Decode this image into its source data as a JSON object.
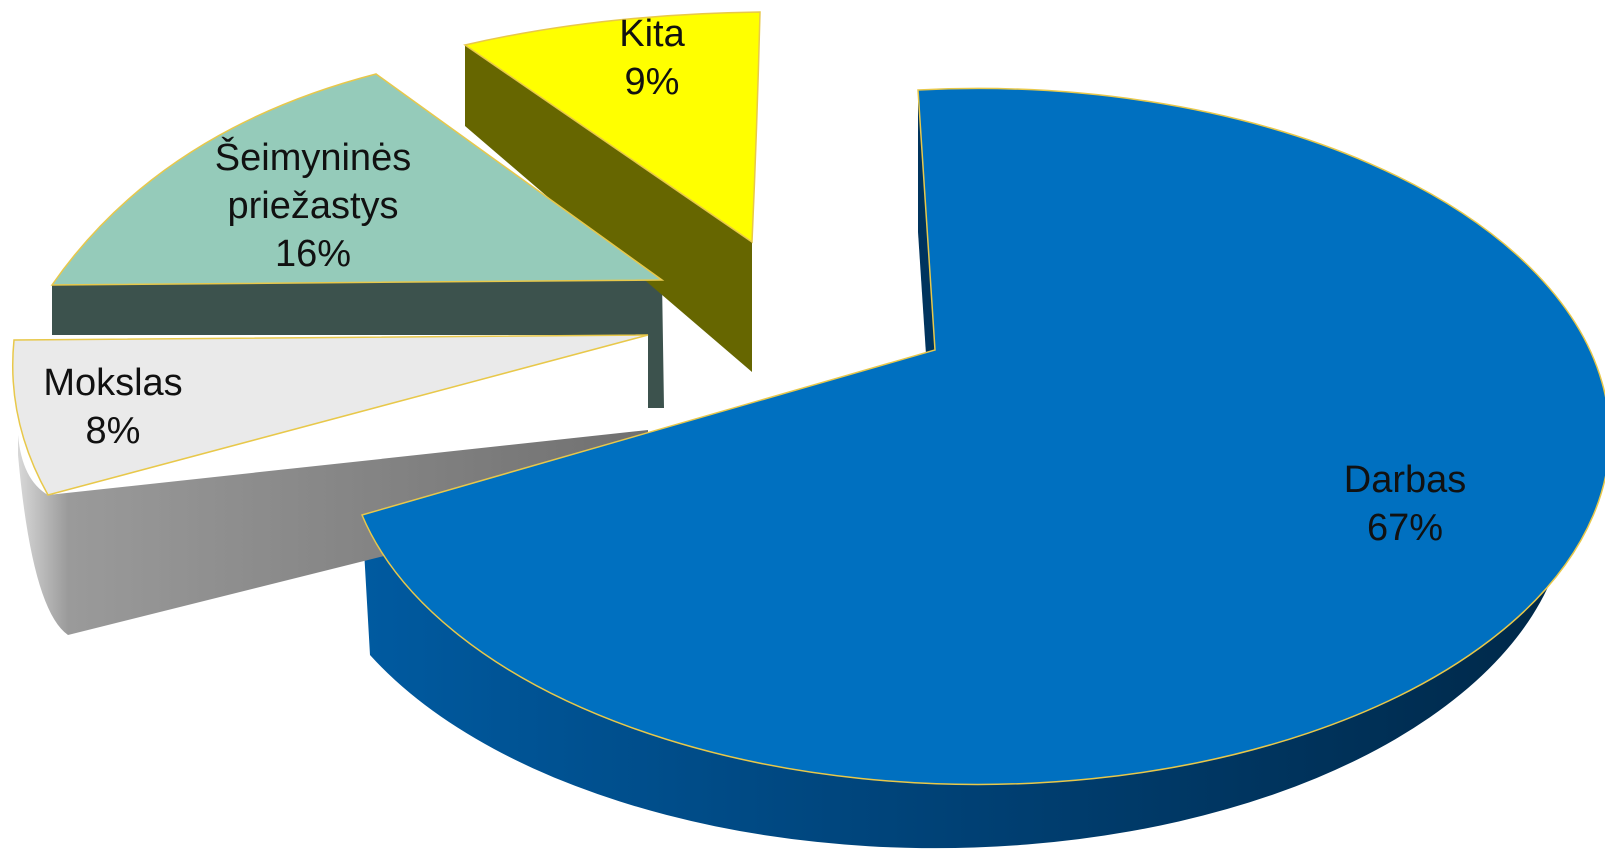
{
  "chart_data": {
    "type": "pie",
    "style": "3d-exploded",
    "title": "",
    "categories": [
      "Darbas",
      "Mokslas",
      "Šeimyninės priežastys",
      "Kita"
    ],
    "values": [
      67,
      8,
      16,
      9
    ],
    "unit": "%",
    "slices": [
      {
        "name": "Darbas",
        "label_lines": [
          "Darbas"
        ],
        "value": 67,
        "value_label": "67%",
        "color": "#0070C0",
        "side_color": "#00345E"
      },
      {
        "name": "Mokslas",
        "label_lines": [
          "Mokslas"
        ],
        "value": 8,
        "value_label": "8%",
        "color": "#EAEAEA",
        "side_color": "#7A7A7A"
      },
      {
        "name": "Šeimyninės priežastys",
        "label_lines": [
          "Šeimyninės",
          "priežastys"
        ],
        "value": 16,
        "value_label": "16%",
        "color": "#95CBBA",
        "side_color": "#3C524D"
      },
      {
        "name": "Kita",
        "label_lines": [
          "Kita"
        ],
        "value": 9,
        "value_label": "9%",
        "color": "#FFFF00",
        "side_color": "#666600"
      }
    ],
    "legend": "none",
    "edge_color": "#E8C84A"
  }
}
